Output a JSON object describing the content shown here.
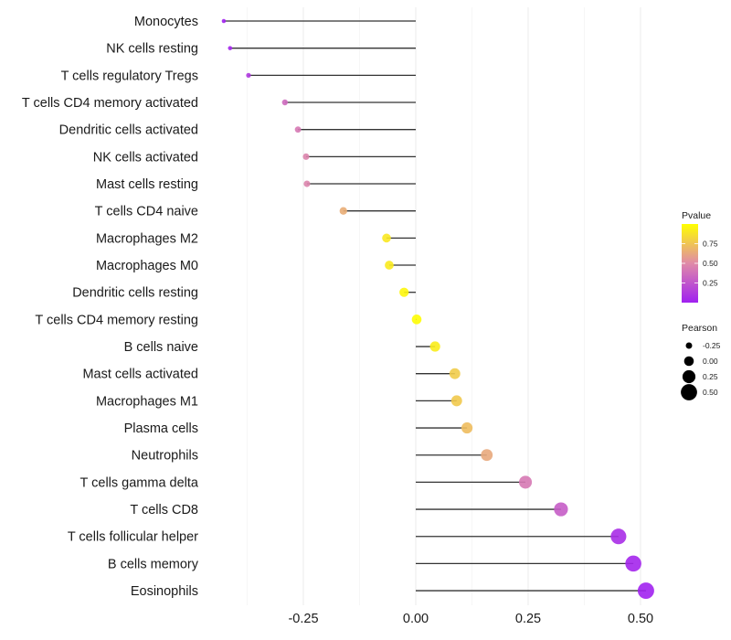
{
  "chart_data": {
    "type": "lollipop",
    "title": "",
    "xlabel": "",
    "ylabel": "",
    "xlim": [
      -0.45,
      0.53
    ],
    "x_ticks": [
      -0.25,
      0.0,
      0.25,
      0.5
    ],
    "x_tick_labels": [
      "-0.25",
      "0.00",
      "0.25",
      "0.50"
    ],
    "grid": true,
    "categories": [
      "Monocytes",
      "NK cells resting",
      "T cells regulatory  Tregs ",
      "T cells CD4 memory activated",
      "Dendritic cells activated",
      "NK cells activated",
      "Mast cells resting",
      "T cells CD4 naive",
      "Macrophages M2",
      "Macrophages M0",
      "Dendritic cells resting",
      "T cells CD4 memory resting",
      "B cells naive",
      "Mast cells activated",
      "Macrophages M1",
      "Plasma cells",
      "Neutrophils",
      "T cells gamma delta",
      "T cells CD8",
      "T cells follicular helper",
      "B cells memory",
      "Eosinophils"
    ],
    "pearson": [
      -0.427,
      -0.413,
      -0.372,
      -0.291,
      -0.262,
      -0.244,
      -0.242,
      -0.161,
      -0.065,
      -0.059,
      -0.026,
      0.002,
      0.043,
      0.087,
      0.091,
      0.114,
      0.158,
      0.244,
      0.323,
      0.451,
      0.484,
      0.512
    ],
    "pvalue": [
      0.01,
      0.03,
      0.12,
      0.35,
      0.42,
      0.47,
      0.47,
      0.65,
      0.9,
      0.91,
      0.96,
      0.99,
      0.92,
      0.78,
      0.77,
      0.72,
      0.63,
      0.42,
      0.29,
      0.06,
      0.03,
      0.01
    ],
    "color_scale": {
      "title": "Pvalue",
      "low_color": "#A020F0",
      "mid_color": "#E08AA8",
      "high_color": "#FFFF00",
      "range": [
        0.0,
        1.0
      ],
      "ticks": [
        0.25,
        0.5,
        0.75
      ],
      "tick_labels": [
        "0.25",
        "0.50",
        "0.75"
      ]
    },
    "size_scale": {
      "title": "Pearson",
      "breaks": [
        -0.25,
        0.0,
        0.25,
        0.5
      ],
      "labels": [
        "-0.25",
        "0.00",
        "0.25",
        "0.50"
      ]
    },
    "legend_position": "right"
  }
}
